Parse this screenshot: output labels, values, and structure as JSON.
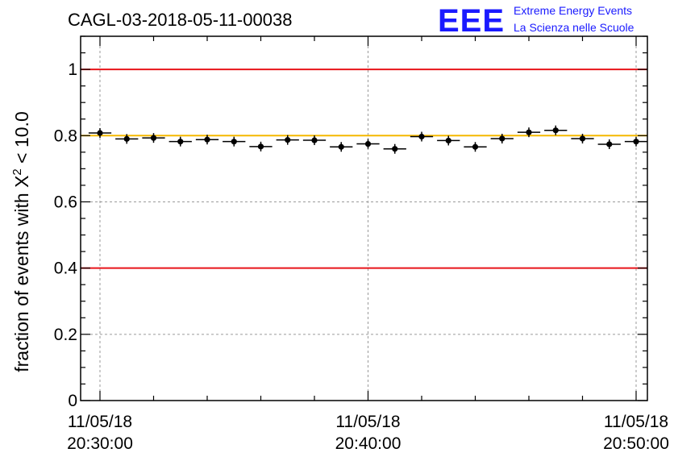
{
  "chart_data": {
    "type": "scatter",
    "title": "CAGL-03-2018-05-11-00038",
    "ylabel_prefix": "fraction of events with ",
    "ylabel_symbol": "X",
    "ylabel_sup": "2",
    "ylabel_suffix": " < 10.0",
    "xlabel": "",
    "ylim": [
      0,
      1.1
    ],
    "yticks": [
      0,
      0.2,
      0.4,
      0.6,
      0.8,
      1
    ],
    "ytick_labels": [
      "0",
      "0.2",
      "0.4",
      "0.6",
      "0.8",
      "1"
    ],
    "xticks": [
      {
        "date": "11/05/18",
        "time": "20:30:00"
      },
      {
        "date": "11/05/18",
        "time": "20:40:00"
      },
      {
        "date": "11/05/18",
        "time": "20:50:00"
      }
    ],
    "grid": true,
    "reference_lines": [
      {
        "y": 1.0,
        "color": "#e8141a"
      },
      {
        "y": 0.4,
        "color": "#e8141a"
      },
      {
        "y": 0.8,
        "color": "#f5b800"
      }
    ],
    "series": [
      {
        "points": [
          {
            "time": "20:30:00",
            "y": 0.808
          },
          {
            "time": "20:31:00",
            "y": 0.79
          },
          {
            "time": "20:32:00",
            "y": 0.793
          },
          {
            "time": "20:33:00",
            "y": 0.782
          },
          {
            "time": "20:34:00",
            "y": 0.788
          },
          {
            "time": "20:35:00",
            "y": 0.782
          },
          {
            "time": "20:36:00",
            "y": 0.767
          },
          {
            "time": "20:37:00",
            "y": 0.787
          },
          {
            "time": "20:38:00",
            "y": 0.786
          },
          {
            "time": "20:39:00",
            "y": 0.766
          },
          {
            "time": "20:40:00",
            "y": 0.775
          },
          {
            "time": "20:41:00",
            "y": 0.76
          },
          {
            "time": "20:42:00",
            "y": 0.797
          },
          {
            "time": "20:43:00",
            "y": 0.785
          },
          {
            "time": "20:44:00",
            "y": 0.766
          },
          {
            "time": "20:45:00",
            "y": 0.791
          },
          {
            "time": "20:46:00",
            "y": 0.81
          },
          {
            "time": "20:47:00",
            "y": 0.816
          },
          {
            "time": "20:48:00",
            "y": 0.791
          },
          {
            "time": "20:49:00",
            "y": 0.774
          },
          {
            "time": "20:50:00",
            "y": 0.782
          }
        ]
      }
    ]
  },
  "logo": {
    "big_text": "EEE",
    "line1": "Extreme Energy Events",
    "line2": "La Scienza nelle Scuole",
    "color": "#1a1aff"
  }
}
